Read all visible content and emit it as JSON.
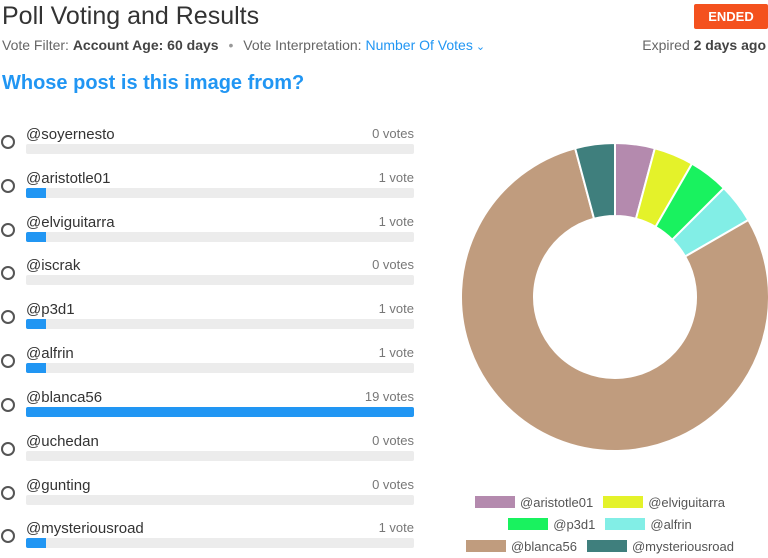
{
  "header": {
    "title": "Poll Voting and Results",
    "status_badge": "ENDED",
    "vote_filter_label": "Vote Filter:",
    "vote_filter_value": "Account Age: 60 days",
    "separator": "•",
    "interp_label": "Vote Interpretation:",
    "interp_value": "Number Of Votes",
    "expired_label": "Expired",
    "expired_value": "2 days ago"
  },
  "question": "Whose post is this image from?",
  "options": [
    {
      "label": "@soyernesto",
      "votes_text": "0 votes",
      "votes": 0
    },
    {
      "label": "@aristotle01",
      "votes_text": "1 vote",
      "votes": 1
    },
    {
      "label": "@elviguitarra",
      "votes_text": "1 vote",
      "votes": 1
    },
    {
      "label": "@iscrak",
      "votes_text": "0 votes",
      "votes": 0
    },
    {
      "label": "@p3d1",
      "votes_text": "1 vote",
      "votes": 1
    },
    {
      "label": "@alfrin",
      "votes_text": "1 vote",
      "votes": 1
    },
    {
      "label": "@blanca56",
      "votes_text": "19 votes",
      "votes": 19
    },
    {
      "label": "@uchedan",
      "votes_text": "0 votes",
      "votes": 0
    },
    {
      "label": "@gunting",
      "votes_text": "0 votes",
      "votes": 0
    },
    {
      "label": "@mysteriousroad",
      "votes_text": "1 vote",
      "votes": 1
    }
  ],
  "max_votes": 19,
  "colors": {
    "accent": "#2196f3",
    "badge": "#f4511e",
    "track": "#ececec"
  },
  "chart_data": {
    "type": "pie",
    "title": "",
    "series": [
      {
        "name": "@aristotle01",
        "value": 1,
        "color": "#b48aae"
      },
      {
        "name": "@elviguitarra",
        "value": 1,
        "color": "#e4f22a"
      },
      {
        "name": "@p3d1",
        "value": 1,
        "color": "#19f25f"
      },
      {
        "name": "@alfrin",
        "value": 1,
        "color": "#82eee6"
      },
      {
        "name": "@blanca56",
        "value": 19,
        "color": "#c09c7e"
      },
      {
        "name": "@mysteriousroad",
        "value": 1,
        "color": "#3f7f7d"
      }
    ],
    "legend_placement": "bottom",
    "legend_rows": [
      [
        0,
        1
      ],
      [
        2,
        3
      ],
      [
        4,
        5
      ]
    ]
  },
  "icons": {
    "dropdown": "chevron-down-icon"
  }
}
